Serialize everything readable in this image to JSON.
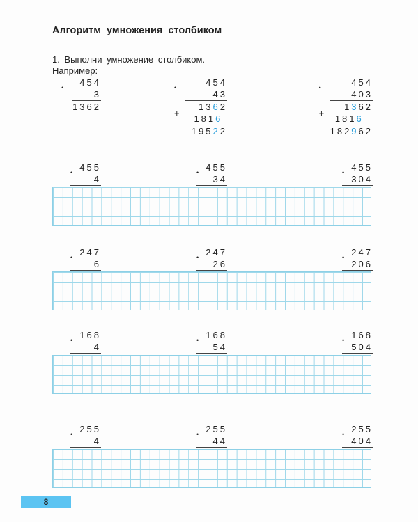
{
  "title": "Алгоритм умножения столбиком",
  "task": {
    "line1": "1. Выполни умножение столбиком.",
    "line2": "Например:"
  },
  "highlight_color": "#2a9fdc",
  "examples": [
    {
      "lines": [
        {
          "t": "454"
        },
        {
          "t": "3",
          "ul": true,
          "mul": true
        },
        {
          "t": "1362"
        }
      ]
    },
    {
      "lines": [
        {
          "t": "454"
        },
        {
          "t": "43",
          "ul": true,
          "mul": true
        },
        {
          "t": "1362",
          "blue": [
            2
          ]
        },
        {
          "t": "1816 ",
          "blue": [
            3
          ],
          "ul": true,
          "plus": true
        },
        {
          "t": "19522",
          "blue": [
            3
          ]
        }
      ]
    },
    {
      "lines": [
        {
          "t": "454"
        },
        {
          "t": "403",
          "ul": true,
          "mul": true
        },
        {
          "t": "1362",
          "blue": [
            1
          ]
        },
        {
          "t": "1816  ",
          "blue": [
            3
          ],
          "ul": true,
          "plus": true
        },
        {
          "t": "182962",
          "blue": [
            3
          ]
        }
      ]
    }
  ],
  "exercises": [
    [
      {
        "a": "455",
        "b": "4"
      },
      {
        "a": "455",
        "b": "34"
      },
      {
        "a": "455",
        "b": "304"
      }
    ],
    [
      {
        "a": "247",
        "b": "6"
      },
      {
        "a": "247",
        "b": "26"
      },
      {
        "a": "247",
        "b": "206"
      }
    ],
    [
      {
        "a": "168",
        "b": "4"
      },
      {
        "a": "168",
        "b": "54"
      },
      {
        "a": "168",
        "b": "504"
      }
    ],
    [
      {
        "a": "255",
        "b": "4"
      },
      {
        "a": "255",
        "b": "44"
      },
      {
        "a": "255",
        "b": "404"
      }
    ]
  ],
  "page_number": "8"
}
